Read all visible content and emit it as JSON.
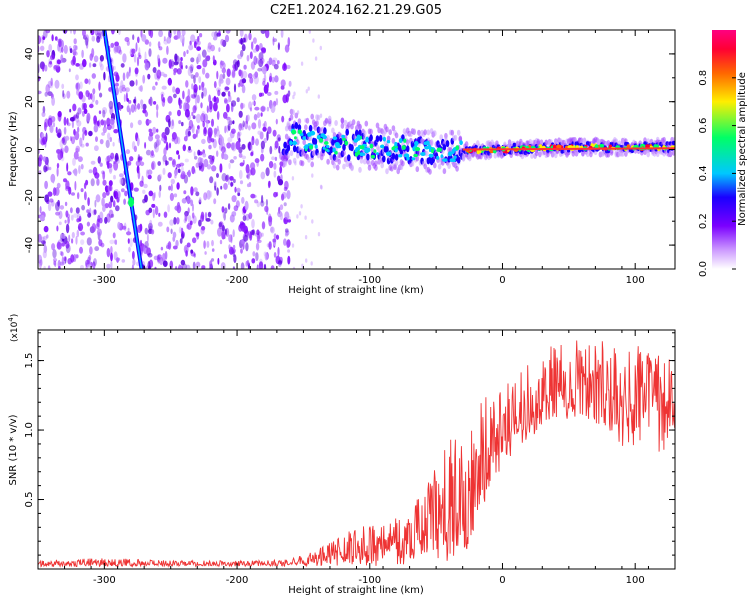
{
  "figure": {
    "title": "C2E1.2024.162.21.29.G05"
  },
  "chart_data": [
    {
      "type": "heatmap",
      "name": "spectrogram",
      "xlabel": "Height of straight line (km)",
      "ylabel": "Frequency (Hz)",
      "xlim": [
        -350,
        130
      ],
      "ylim": [
        -50,
        50
      ],
      "xticks": [
        -300,
        -200,
        -100,
        0,
        100
      ],
      "yticks": [
        -40,
        -20,
        0,
        20,
        40
      ],
      "colorbar": {
        "label": "Normalized spectral amplitude",
        "range": [
          0,
          1
        ],
        "ticks": [
          0.0,
          0.2,
          0.4,
          0.6,
          0.8
        ],
        "tick_labels": [
          "0.0",
          "0.2",
          "0.4",
          "0.6",
          "0.8"
        ],
        "colormap": [
          "#ffffff",
          "#cc99ff",
          "#7b00ff",
          "#1a00ff",
          "#00c8ff",
          "#00ff66",
          "#ffee00",
          "#ff6600",
          "#ff0033",
          "#ff0080"
        ]
      },
      "features": {
        "noise_region_x": [
          -350,
          -160
        ],
        "streak_line": {
          "x_start": -300,
          "y_start": 50,
          "x_end": -272,
          "y_end": -50
        },
        "band_center_hz": [
          {
            "x": -160,
            "y": 5
          },
          {
            "x": -120,
            "y": 2
          },
          {
            "x": -80,
            "y": 0
          },
          {
            "x": -40,
            "y": -1
          },
          {
            "x": 0,
            "y": 0
          },
          {
            "x": 60,
            "y": 1
          },
          {
            "x": 130,
            "y": 1
          }
        ]
      }
    },
    {
      "type": "line",
      "name": "snr",
      "xlabel": "Height of straight line (km)",
      "ylabel": "SNR (10 * v/v)",
      "y_multiplier_label": "(x10",
      "y_multiplier_exp": "4",
      "y_multiplier_close": ")",
      "xlim": [
        -350,
        130
      ],
      "ylim": [
        0,
        1.72
      ],
      "xticks": [
        -300,
        -200,
        -100,
        0,
        100
      ],
      "yticks": [
        0.5,
        1.0,
        1.5
      ],
      "ytick_labels": [
        "0.5",
        "1.0",
        "1.5"
      ],
      "color": "#ee3333",
      "series": [
        {
          "name": "SNR",
          "x": [
            -350,
            -300,
            -250,
            -200,
            -160,
            -140,
            -120,
            -100,
            -80,
            -60,
            -40,
            -30,
            -20,
            -10,
            0,
            10,
            20,
            30,
            40,
            60,
            80,
            100,
            130
          ],
          "base": [
            0.03,
            0.04,
            0.035,
            0.035,
            0.04,
            0.06,
            0.1,
            0.14,
            0.18,
            0.24,
            0.34,
            0.5,
            0.68,
            0.8,
            0.95,
            1.05,
            1.12,
            1.2,
            1.25,
            1.28,
            1.27,
            1.24,
            1.2
          ],
          "max": [
            0.06,
            0.08,
            0.06,
            0.06,
            0.07,
            0.14,
            0.26,
            0.33,
            0.42,
            0.55,
            0.95,
            1.05,
            1.2,
            1.3,
            1.36,
            1.42,
            1.5,
            1.58,
            1.62,
            1.66,
            1.7,
            1.62,
            1.5
          ],
          "min": [
            0.01,
            0.02,
            0.02,
            0.02,
            0.02,
            0.02,
            0.02,
            0.02,
            0.03,
            0.04,
            0.02,
            0.03,
            0.3,
            0.55,
            0.75,
            0.85,
            0.95,
            1.0,
            1.05,
            1.1,
            0.98,
            0.8,
            0.85
          ]
        }
      ]
    }
  ]
}
